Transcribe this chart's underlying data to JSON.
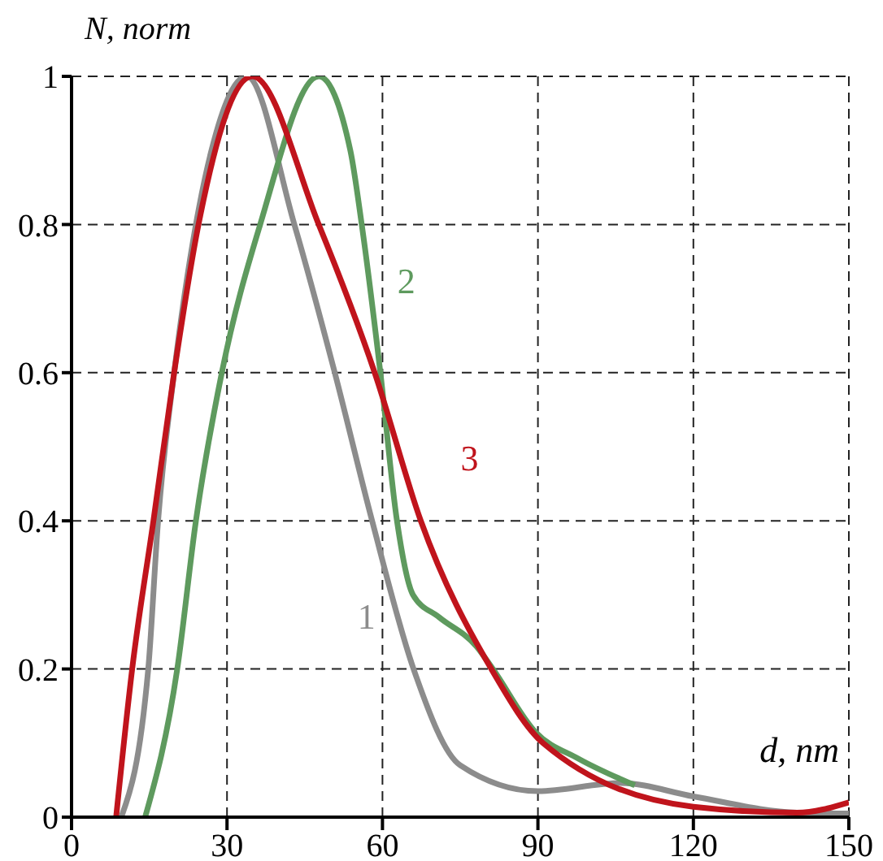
{
  "chart_data": {
    "type": "line",
    "xlabel": "d, nm",
    "ylabel": "N, norm",
    "xlim": [
      0,
      150
    ],
    "xticks": [
      0,
      30,
      60,
      90,
      120,
      150
    ],
    "ylim": [
      0,
      1
    ],
    "yticks": [
      0,
      0.2,
      0.4,
      0.6,
      0.8,
      1
    ],
    "grid": true,
    "marker": "none",
    "line_style": "solid",
    "series": [
      {
        "name": "1",
        "color": "#8c8c8c",
        "x": [
          9.6,
          14.8,
          16.7,
          19.8,
          24,
          27,
          33.8,
          43,
          50.8,
          58,
          66,
          75,
          90,
          106,
          120,
          140,
          150
        ],
        "values": [
          0,
          0.2,
          0.4,
          0.6,
          0.8,
          0.9,
          1,
          0.8,
          0.6,
          0.4,
          0.2,
          0.07,
          0.035,
          0.046,
          0.028,
          0.006,
          0.005
        ]
      },
      {
        "name": "2",
        "color": "#5e9a5e",
        "x": [
          14.2,
          20.4,
          24,
          29,
          36.4,
          47.7,
          53.8,
          56,
          59.6,
          62.8,
          65.9,
          70.9,
          78.2,
          81.3,
          89.5,
          97.8,
          108.7
        ],
        "values": [
          0,
          0.2,
          0.4,
          0.6,
          0.8,
          1,
          0.9,
          0.8,
          0.6,
          0.4,
          0.3,
          0.27,
          0.23,
          0.2,
          0.115,
          0.079,
          0.043
        ]
      },
      {
        "name": "3",
        "color": "#c0141c",
        "x": [
          8.6,
          11.7,
          15.8,
          19.8,
          24.5,
          34.9,
          47.7,
          58.5,
          67.4,
          81,
          91,
          120,
          140,
          150
        ],
        "values": [
          0,
          0.2,
          0.4,
          0.6,
          0.8,
          1,
          0.8,
          0.6,
          0.4,
          0.2,
          0.1,
          0.014,
          0.006,
          0.02
        ]
      }
    ]
  }
}
